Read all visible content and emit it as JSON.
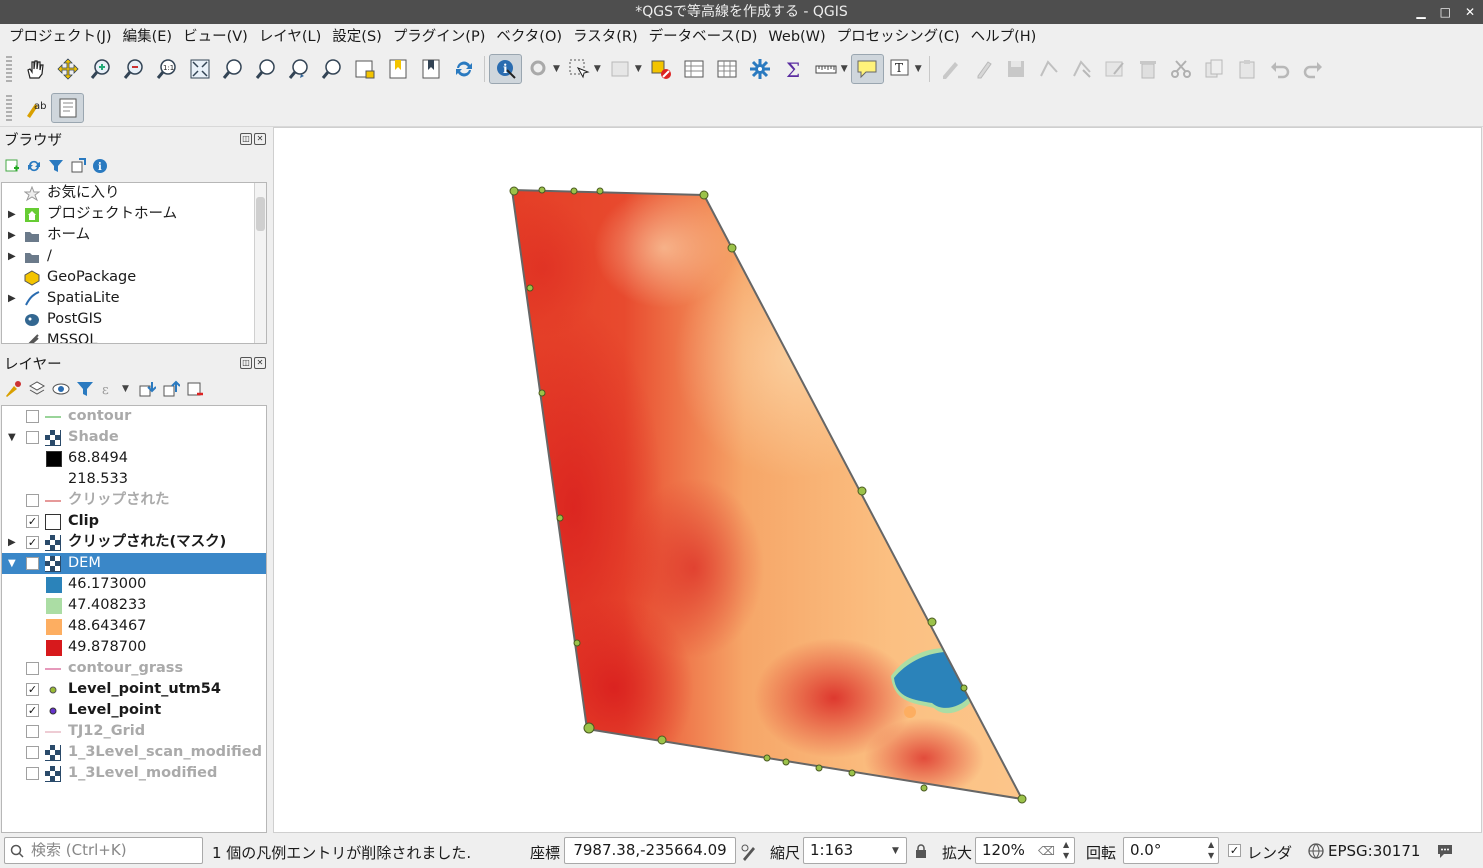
{
  "window": {
    "title": "*QGSで等高線を作成する - QGIS"
  },
  "menu": [
    "プロジェクト(J)",
    "編集(E)",
    "ビュー(V)",
    "レイヤ(L)",
    "設定(S)",
    "プラグイン(P)",
    "ベクタ(O)",
    "ラスタ(R)",
    "データベース(D)",
    "Web(W)",
    "プロセッシング(C)",
    "ヘルプ(H)"
  ],
  "browser": {
    "title": "ブラウザ",
    "items": [
      {
        "label": "お気に入り",
        "icon": "star-icon"
      },
      {
        "label": "プロジェクトホーム",
        "icon": "project-home-icon"
      },
      {
        "label": "ホーム",
        "icon": "folder-icon"
      },
      {
        "label": "/",
        "icon": "folder-icon"
      },
      {
        "label": "GeoPackage",
        "icon": "geopackage-icon"
      },
      {
        "label": "SpatiaLite",
        "icon": "spatialite-icon"
      },
      {
        "label": "PostGIS",
        "icon": "postgis-icon"
      },
      {
        "label": "MSSQL",
        "icon": "mssql-icon"
      }
    ]
  },
  "layers": {
    "title": "レイヤー",
    "items": [
      {
        "label": "contour",
        "checked": false
      },
      {
        "label": "Shade",
        "checked": false
      },
      {
        "label": "68.8494",
        "legend": "#000000"
      },
      {
        "label": "218.533",
        "legend": "#ffffff"
      },
      {
        "label": "クリップされた",
        "checked": false
      },
      {
        "label": "Clip",
        "checked": true
      },
      {
        "label": "クリップされた(マスク)",
        "checked": true
      },
      {
        "label": "DEM",
        "checked": false,
        "selected": true
      },
      {
        "label": "46.173000",
        "legend": "#2b83ba"
      },
      {
        "label": "47.408233",
        "legend": "#abdda4"
      },
      {
        "label": "48.643467",
        "legend": "#fdae61"
      },
      {
        "label": "49.878700",
        "legend": "#d7191c"
      },
      {
        "label": "contour_grass",
        "checked": false
      },
      {
        "label": "Level_point_utm54",
        "checked": true
      },
      {
        "label": "Level_point",
        "checked": true
      },
      {
        "label": "TJ12_Grid",
        "checked": false
      },
      {
        "label": "1_3Level_scan_modified",
        "checked": false
      },
      {
        "label": "1_3Level_modified",
        "checked": false
      }
    ]
  },
  "status": {
    "search_placeholder": "検索 (Ctrl+K)",
    "message": "1 個の凡例エントリが削除されました.",
    "coord_label": "座標",
    "coord_value": "7987.38,-235664.09",
    "scale_label": "縮尺",
    "scale_value": "1:163",
    "magnify_label": "拡大",
    "magnify_value": "120%",
    "rotation_label": "回転",
    "rotation_value": "0.0°",
    "render_label": "レンダ",
    "crs": "EPSG:30171"
  },
  "colors": {
    "low": "#2b83ba",
    "mid_low": "#abdda4",
    "mid_high": "#fdae61",
    "high": "#d7191c",
    "selection": "#3a87c8"
  }
}
